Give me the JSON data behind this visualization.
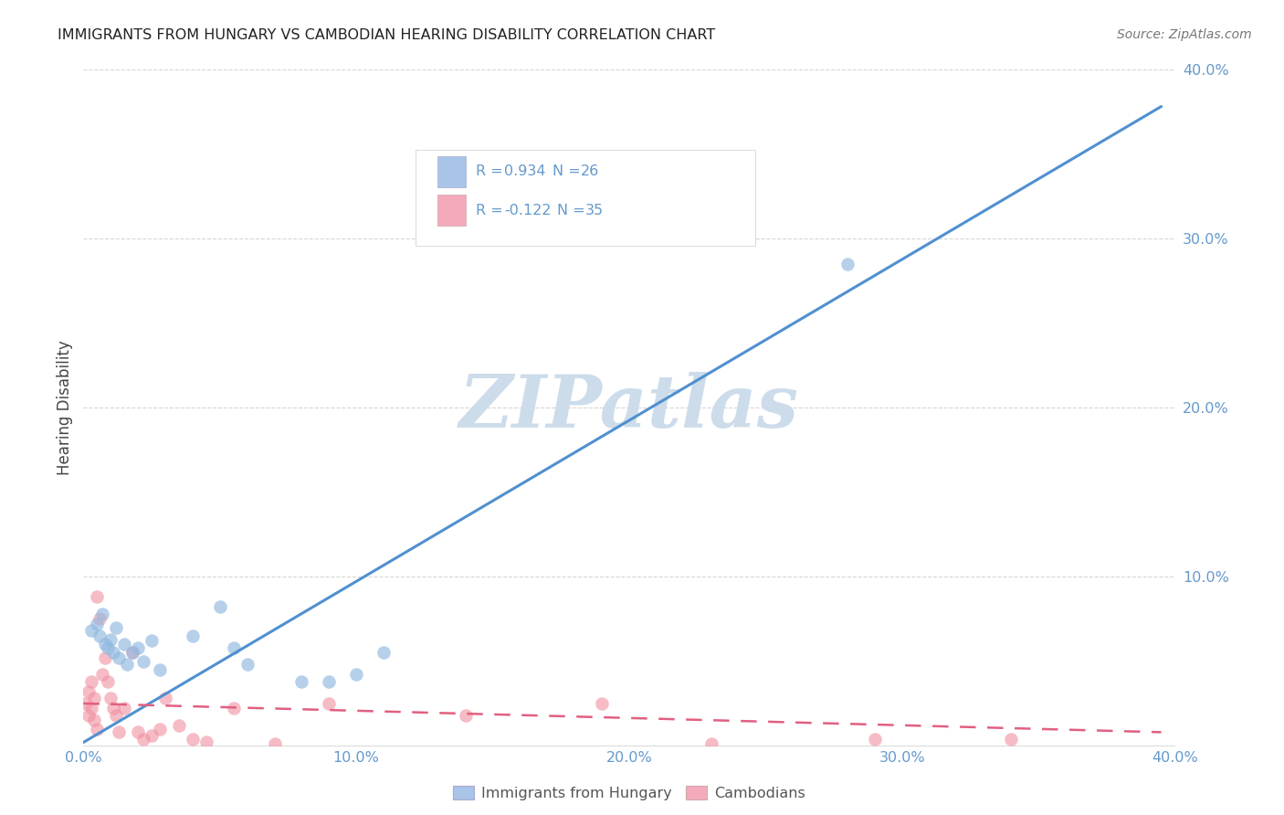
{
  "title": "IMMIGRANTS FROM HUNGARY VS CAMBODIAN HEARING DISABILITY CORRELATION CHART",
  "source": "Source: ZipAtlas.com",
  "ylabel": "Hearing Disability",
  "xmin": 0.0,
  "xmax": 0.4,
  "ymin": 0.0,
  "ymax": 0.4,
  "ytick_values": [
    0.0,
    0.1,
    0.2,
    0.3,
    0.4
  ],
  "xtick_values": [
    0.0,
    0.1,
    0.2,
    0.3,
    0.4
  ],
  "legend_entry1_color": "#a8c4e8",
  "legend_entry2_color": "#f4aabb",
  "watermark": "ZIPatlas",
  "watermark_color": "#cddcea",
  "series1_color": "#90b8e0",
  "series2_color": "#f090a0",
  "trendline1_color": "#5090d0",
  "trendline2_color": "#e06080",
  "background_color": "#ffffff",
  "grid_color": "#cccccc",
  "title_color": "#222222",
  "axis_label_color": "#6699cc",
  "series1_scatter": [
    [
      0.003,
      0.068
    ],
    [
      0.005,
      0.072
    ],
    [
      0.006,
      0.065
    ],
    [
      0.007,
      0.078
    ],
    [
      0.008,
      0.06
    ],
    [
      0.009,
      0.058
    ],
    [
      0.01,
      0.063
    ],
    [
      0.011,
      0.055
    ],
    [
      0.012,
      0.07
    ],
    [
      0.013,
      0.052
    ],
    [
      0.015,
      0.06
    ],
    [
      0.016,
      0.048
    ],
    [
      0.018,
      0.055
    ],
    [
      0.02,
      0.058
    ],
    [
      0.022,
      0.05
    ],
    [
      0.025,
      0.062
    ],
    [
      0.028,
      0.045
    ],
    [
      0.04,
      0.065
    ],
    [
      0.05,
      0.082
    ],
    [
      0.055,
      0.058
    ],
    [
      0.06,
      0.048
    ],
    [
      0.08,
      0.038
    ],
    [
      0.09,
      0.038
    ],
    [
      0.1,
      0.042
    ],
    [
      0.11,
      0.055
    ],
    [
      0.28,
      0.285
    ]
  ],
  "series2_scatter": [
    [
      0.001,
      0.025
    ],
    [
      0.002,
      0.032
    ],
    [
      0.002,
      0.018
    ],
    [
      0.003,
      0.022
    ],
    [
      0.003,
      0.038
    ],
    [
      0.004,
      0.015
    ],
    [
      0.004,
      0.028
    ],
    [
      0.005,
      0.01
    ],
    [
      0.005,
      0.088
    ],
    [
      0.006,
      0.075
    ],
    [
      0.007,
      0.042
    ],
    [
      0.008,
      0.052
    ],
    [
      0.009,
      0.038
    ],
    [
      0.01,
      0.028
    ],
    [
      0.011,
      0.022
    ],
    [
      0.012,
      0.018
    ],
    [
      0.013,
      0.008
    ],
    [
      0.015,
      0.022
    ],
    [
      0.018,
      0.055
    ],
    [
      0.02,
      0.008
    ],
    [
      0.022,
      0.004
    ],
    [
      0.025,
      0.006
    ],
    [
      0.028,
      0.01
    ],
    [
      0.03,
      0.028
    ],
    [
      0.035,
      0.012
    ],
    [
      0.04,
      0.004
    ],
    [
      0.045,
      0.002
    ],
    [
      0.055,
      0.022
    ],
    [
      0.07,
      0.001
    ],
    [
      0.09,
      0.025
    ],
    [
      0.14,
      0.018
    ],
    [
      0.19,
      0.025
    ],
    [
      0.23,
      0.001
    ],
    [
      0.29,
      0.004
    ],
    [
      0.34,
      0.004
    ]
  ],
  "series1_trendline": [
    [
      0.0,
      0.002
    ],
    [
      0.395,
      0.378
    ]
  ],
  "series2_trendline": [
    [
      0.0,
      0.025
    ],
    [
      0.395,
      0.008
    ]
  ],
  "legend_bottom_items": [
    "Immigrants from Hungary",
    "Cambodians"
  ]
}
